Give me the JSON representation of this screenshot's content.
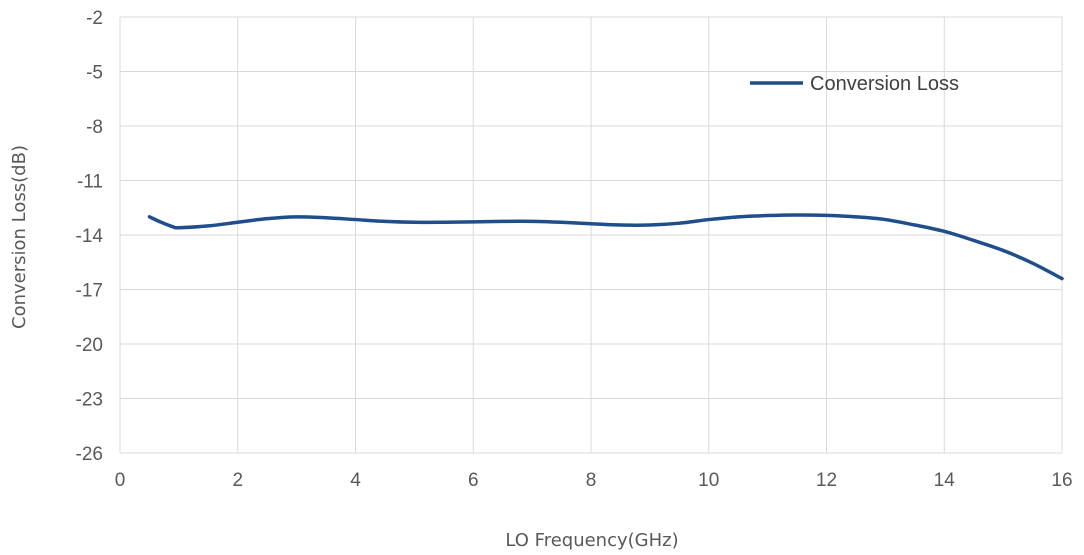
{
  "chart_data": {
    "type": "line",
    "title": "",
    "xlabel": "LO Frequency(GHz)",
    "ylabel": "Conversion Loss(dB)",
    "xlim": [
      0,
      16
    ],
    "ylim": [
      -26,
      -2
    ],
    "x_ticks": [
      "0",
      "2",
      "4",
      "6",
      "8",
      "10",
      "12",
      "14",
      "16"
    ],
    "y_ticks": [
      "-2",
      "-5",
      "-8",
      "-11",
      "-14",
      "-17",
      "-20",
      "-23",
      "-26"
    ],
    "grid": true,
    "legend_position": "top-right",
    "series": [
      {
        "name": "Conversion Loss",
        "color": "#1F4E8C",
        "x": [
          0.5,
          0.7,
          0.9,
          1.0,
          1.5,
          2.0,
          2.5,
          3.0,
          3.5,
          4.0,
          4.5,
          5.0,
          5.5,
          6.0,
          6.5,
          7.0,
          7.5,
          8.0,
          8.5,
          9.0,
          9.5,
          10.0,
          10.5,
          11.0,
          11.5,
          12.0,
          12.5,
          13.0,
          13.5,
          14.0,
          14.5,
          15.0,
          15.5,
          16.0
        ],
        "y": [
          -13.0,
          -13.3,
          -13.55,
          -13.6,
          -13.5,
          -13.3,
          -13.1,
          -13.0,
          -13.05,
          -13.15,
          -13.25,
          -13.3,
          -13.3,
          -13.28,
          -13.25,
          -13.25,
          -13.3,
          -13.38,
          -13.45,
          -13.45,
          -13.35,
          -13.15,
          -13.0,
          -12.93,
          -12.9,
          -12.92,
          -13.0,
          -13.15,
          -13.45,
          -13.8,
          -14.3,
          -14.85,
          -15.55,
          -16.4
        ]
      }
    ]
  }
}
